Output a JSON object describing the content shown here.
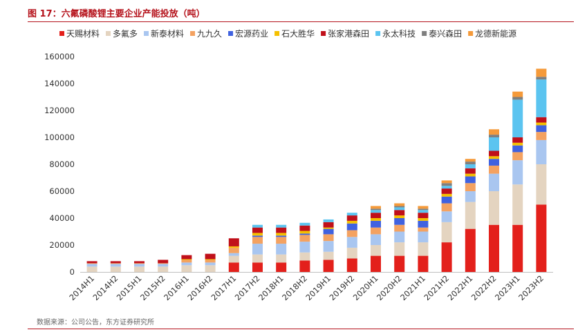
{
  "title": "图 17：六氟磷酸锂主要企业产能投放（吨）",
  "source": "数据来源：公司公告，东方证券研究所",
  "chart_data": {
    "type": "bar",
    "stacked": true,
    "categories": [
      "2014H1",
      "2014H2",
      "2015H1",
      "2015H2",
      "2016H1",
      "2016H2",
      "2017H1",
      "2017H2",
      "2018H1",
      "2018H2",
      "2019H1",
      "2019H2",
      "2020H1",
      "2020H2",
      "2021H1",
      "2021H2",
      "2022H1",
      "2022H2",
      "2023H1",
      "2023H2"
    ],
    "ylim": [
      0,
      160000
    ],
    "yticks": [
      0,
      20000,
      40000,
      60000,
      80000,
      100000,
      120000,
      140000,
      160000
    ],
    "ytick_labels": [
      "0",
      "20000",
      "40000",
      "60000",
      "80000",
      "100000",
      "120000",
      "140000",
      "160000"
    ],
    "legend_position": "top",
    "series": [
      {
        "name": "天赐材料",
        "color": "#e3201b",
        "values": [
          0,
          0,
          0,
          0,
          0,
          0,
          7000,
          7000,
          7000,
          8500,
          9000,
          10000,
          12000,
          12000,
          12000,
          22000,
          32000,
          35000,
          35000,
          50000
        ]
      },
      {
        "name": "多氟多",
        "color": "#e4d4c0",
        "values": [
          4000,
          4000,
          4000,
          4000,
          5000,
          5000,
          5000,
          6000,
          6000,
          6000,
          6000,
          8000,
          8000,
          10000,
          10000,
          15000,
          20000,
          25000,
          30000,
          30000
        ]
      },
      {
        "name": "新泰材料",
        "color": "#a9c6f0",
        "values": [
          2000,
          2000,
          2000,
          2000,
          2000,
          2000,
          2000,
          8000,
          8000,
          8000,
          8000,
          8000,
          8000,
          8000,
          8000,
          8000,
          8000,
          13000,
          18000,
          18000
        ]
      },
      {
        "name": "九九久",
        "color": "#f4a261",
        "values": [
          500,
          500,
          500,
          500,
          2000,
          2000,
          4000,
          5000,
          5000,
          5000,
          5000,
          5000,
          5000,
          5000,
          3000,
          6000,
          6000,
          6000,
          6000,
          6000
        ]
      },
      {
        "name": "宏源药业",
        "color": "#4062e0",
        "values": [
          0,
          0,
          0,
          0,
          0,
          0,
          0,
          1000,
          1000,
          1000,
          4000,
          5000,
          5000,
          5000,
          5000,
          5000,
          5000,
          5000,
          5000,
          5000
        ]
      },
      {
        "name": "石大胜华",
        "color": "#f5c000",
        "values": [
          0,
          0,
          0,
          0,
          500,
          500,
          1000,
          2000,
          2000,
          2000,
          1000,
          2000,
          2000,
          2000,
          2000,
          2000,
          2000,
          2000,
          2000,
          2000
        ]
      },
      {
        "name": "张家港森田",
        "color": "#c0101a",
        "values": [
          1500,
          1500,
          1500,
          2500,
          3000,
          4000,
          6000,
          4000,
          4000,
          4000,
          4000,
          4000,
          4000,
          4000,
          4000,
          4000,
          4000,
          4000,
          4000,
          4000
        ]
      },
      {
        "name": "永太科技",
        "color": "#5bc4f0",
        "values": [
          0,
          0,
          0,
          0,
          0,
          0,
          0,
          2000,
          2000,
          2000,
          2000,
          2000,
          2000,
          2000,
          2000,
          2000,
          3000,
          10000,
          28000,
          28000
        ]
      },
      {
        "name": "泰兴森田",
        "color": "#7f7f7f",
        "values": [
          0,
          0,
          0,
          0,
          0,
          0,
          0,
          0,
          0,
          0,
          0,
          0,
          1000,
          1000,
          1000,
          2000,
          2000,
          2000,
          2000,
          2000
        ]
      },
      {
        "name": "龙德新能源",
        "color": "#f59a3a",
        "values": [
          0,
          0,
          0,
          0,
          0,
          0,
          0,
          0,
          0,
          0,
          0,
          0,
          2000,
          2000,
          2000,
          2000,
          2000,
          4000,
          4000,
          6000
        ]
      }
    ]
  }
}
